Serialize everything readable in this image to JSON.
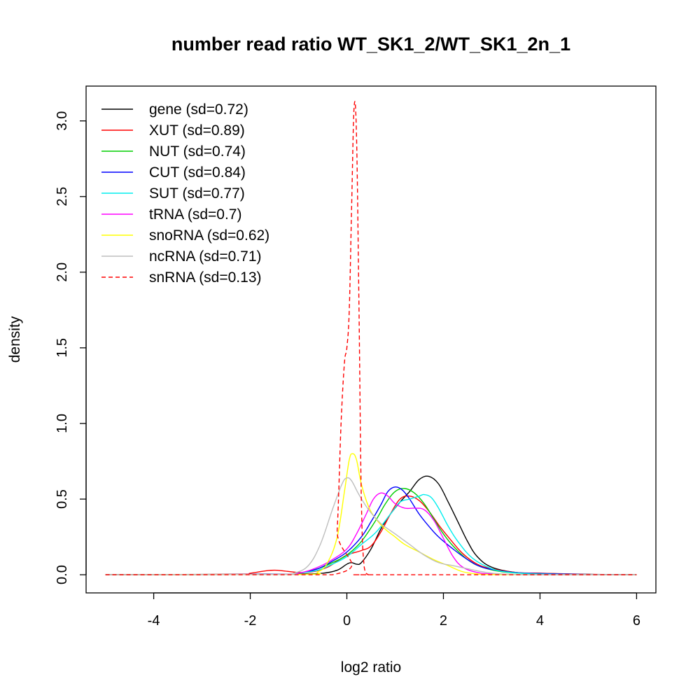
{
  "chart_data": {
    "type": "line",
    "title": "number read ratio WT_SK1_2/WT_SK1_2n_1",
    "xlabel": "log2 ratio",
    "ylabel": "density",
    "xlim": [
      -5.4,
      6.4
    ],
    "ylim": [
      -0.12,
      3.23
    ],
    "x_ticks": [
      -4,
      -2,
      0,
      2,
      4,
      6
    ],
    "y_ticks": [
      0.0,
      0.5,
      1.0,
      1.5,
      2.0,
      2.5,
      3.0
    ],
    "x_tick_labels": [
      "-4",
      "-2",
      "0",
      "2",
      "4",
      "6"
    ],
    "y_tick_labels": [
      "0.0",
      "0.5",
      "1.0",
      "1.5",
      "2.0",
      "2.5",
      "3.0"
    ],
    "grid": false,
    "legend_position": "top-left",
    "series": [
      {
        "name": "gene (sd=0.72)",
        "color": "#000000",
        "dash": "solid",
        "x": [
          -5,
          -2,
          -1,
          -0.5,
          -0.2,
          0,
          0.1,
          0.2,
          0.3,
          0.5,
          0.7,
          0.9,
          1.1,
          1.3,
          1.5,
          1.7,
          1.9,
          2.1,
          2.3,
          2.5,
          2.7,
          3.0,
          3.5,
          4,
          5,
          6
        ],
        "y": [
          0,
          0.003,
          0.005,
          0.01,
          0.03,
          0.07,
          0.08,
          0.07,
          0.08,
          0.17,
          0.3,
          0.4,
          0.48,
          0.55,
          0.63,
          0.65,
          0.6,
          0.48,
          0.35,
          0.22,
          0.12,
          0.05,
          0.015,
          0.01,
          0.002,
          0
        ]
      },
      {
        "name": "XUT (sd=0.89)",
        "color": "#ff0000",
        "dash": "solid",
        "x": [
          -5,
          -2.3,
          -2,
          -1.7,
          -1.5,
          -1.3,
          -1.0,
          -0.7,
          -0.4,
          -0.2,
          0,
          0.3,
          0.5,
          0.7,
          0.9,
          1.1,
          1.3,
          1.5,
          1.7,
          1.9,
          2.1,
          2.4,
          2.7,
          3.0,
          3.5,
          4,
          5,
          6
        ],
        "y": [
          0,
          0.003,
          0.01,
          0.025,
          0.03,
          0.025,
          0.015,
          0.02,
          0.05,
          0.09,
          0.13,
          0.16,
          0.19,
          0.28,
          0.4,
          0.5,
          0.52,
          0.49,
          0.42,
          0.33,
          0.25,
          0.14,
          0.07,
          0.04,
          0.015,
          0.01,
          0.003,
          0
        ]
      },
      {
        "name": "NUT (sd=0.74)",
        "color": "#00cd00",
        "dash": "solid",
        "x": [
          -5,
          -1.5,
          -1.0,
          -0.6,
          -0.3,
          0,
          0.3,
          0.6,
          0.8,
          1.0,
          1.2,
          1.4,
          1.6,
          1.8,
          2.0,
          2.2,
          2.5,
          2.8,
          3.2,
          3.6,
          4,
          5,
          6
        ],
        "y": [
          0,
          0.002,
          0.01,
          0.04,
          0.08,
          0.13,
          0.22,
          0.36,
          0.47,
          0.55,
          0.57,
          0.54,
          0.47,
          0.37,
          0.27,
          0.19,
          0.1,
          0.05,
          0.02,
          0.01,
          0.005,
          0.002,
          0
        ]
      },
      {
        "name": "CUT (sd=0.84)",
        "color": "#0000ff",
        "dash": "solid",
        "x": [
          -5,
          -1.5,
          -1.0,
          -0.6,
          -0.3,
          0,
          0.3,
          0.5,
          0.7,
          0.85,
          1.0,
          1.15,
          1.3,
          1.5,
          1.7,
          1.9,
          2.2,
          2.5,
          2.8,
          3.2,
          3.6,
          4,
          5,
          6
        ],
        "y": [
          0,
          0.003,
          0.01,
          0.04,
          0.09,
          0.15,
          0.25,
          0.35,
          0.46,
          0.55,
          0.58,
          0.56,
          0.5,
          0.4,
          0.32,
          0.25,
          0.17,
          0.1,
          0.05,
          0.025,
          0.012,
          0.008,
          0.002,
          0
        ]
      },
      {
        "name": "SUT (sd=0.77)",
        "color": "#00eeee",
        "dash": "solid",
        "x": [
          -5,
          -1.5,
          -1.0,
          -0.6,
          -0.3,
          0,
          0.3,
          0.6,
          0.9,
          1.1,
          1.3,
          1.5,
          1.6,
          1.75,
          1.9,
          2.1,
          2.3,
          2.6,
          3.0,
          3.4,
          4,
          5,
          6
        ],
        "y": [
          0,
          0.002,
          0.01,
          0.03,
          0.07,
          0.12,
          0.2,
          0.28,
          0.4,
          0.48,
          0.5,
          0.52,
          0.53,
          0.51,
          0.44,
          0.32,
          0.22,
          0.11,
          0.04,
          0.015,
          0.005,
          0.001,
          0
        ]
      },
      {
        "name": "tRNA (sd=0.7)",
        "color": "#ff00ff",
        "dash": "solid",
        "x": [
          -5,
          -1.5,
          -1.0,
          -0.6,
          -0.3,
          0,
          0.2,
          0.4,
          0.55,
          0.7,
          0.85,
          1.0,
          1.2,
          1.4,
          1.6,
          1.8,
          2.0,
          2.2,
          2.4,
          2.7,
          3.0,
          3.5,
          4,
          6
        ],
        "y": [
          0,
          0.002,
          0.01,
          0.05,
          0.1,
          0.17,
          0.27,
          0.4,
          0.5,
          0.54,
          0.52,
          0.47,
          0.44,
          0.44,
          0.43,
          0.36,
          0.24,
          0.12,
          0.05,
          0.015,
          0.005,
          0.001,
          0,
          0
        ]
      },
      {
        "name": "snoRNA (sd=0.62)",
        "color": "#ffff00",
        "dash": "solid",
        "x": [
          -5,
          -1.0,
          -0.6,
          -0.4,
          -0.2,
          -0.05,
          0.05,
          0.12,
          0.2,
          0.3,
          0.45,
          0.6,
          0.8,
          1.0,
          1.2,
          1.5,
          1.8,
          2.1,
          2.4,
          2.7,
          3.0,
          4,
          6
        ],
        "y": [
          0,
          0.002,
          0.02,
          0.08,
          0.25,
          0.55,
          0.76,
          0.8,
          0.76,
          0.6,
          0.45,
          0.37,
          0.3,
          0.25,
          0.2,
          0.15,
          0.1,
          0.06,
          0.02,
          0.005,
          0.001,
          0,
          0
        ]
      },
      {
        "name": "ncRNA (sd=0.71)",
        "color": "#bebebe",
        "dash": "solid",
        "x": [
          -5,
          -1.4,
          -1.1,
          -0.8,
          -0.55,
          -0.3,
          -0.1,
          0,
          0.1,
          0.25,
          0.45,
          0.7,
          1.0,
          1.3,
          1.6,
          1.9,
          2.2,
          2.5,
          2.8,
          3.2,
          4,
          6
        ],
        "y": [
          0,
          0.002,
          0.01,
          0.06,
          0.2,
          0.43,
          0.6,
          0.64,
          0.62,
          0.53,
          0.43,
          0.34,
          0.27,
          0.2,
          0.13,
          0.08,
          0.06,
          0.04,
          0.02,
          0.005,
          0,
          0
        ]
      },
      {
        "name": "snRNA (sd=0.13)",
        "color": "#ff0000",
        "dash": "dashed",
        "x": [
          -5,
          -0.3,
          -0.2,
          -0.12,
          -0.05,
          0.0,
          0.05,
          0.1,
          0.15,
          0.2,
          0.25,
          0.3,
          0.36,
          0.45,
          0.6,
          6
        ],
        "y": [
          0,
          0.0,
          0.3,
          1.0,
          1.4,
          1.5,
          1.75,
          2.45,
          3.09,
          2.9,
          1.8,
          0.5,
          0.05,
          0.0,
          0,
          0
        ]
      }
    ]
  }
}
